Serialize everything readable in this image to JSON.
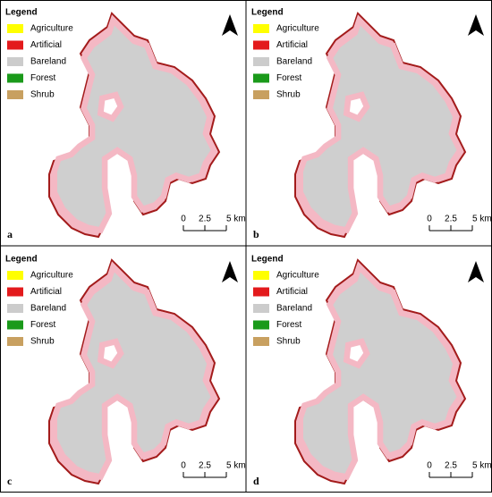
{
  "panels": [
    {
      "label": "a",
      "legend": {
        "title": "Legend",
        "items": [
          {
            "name": "Agriculture",
            "color": "#ffff00"
          },
          {
            "name": "Artificial",
            "color": "#e31a1c"
          },
          {
            "name": "Bareland",
            "color": "#cccccc"
          },
          {
            "name": "Forest",
            "color": "#1a9a1a"
          },
          {
            "name": "Shrub",
            "color": "#c8a060"
          }
        ]
      },
      "scale": [
        "0",
        "2.5",
        "5 km"
      ]
    },
    {
      "label": "b",
      "legend": {
        "title": "Legend",
        "items": [
          {
            "name": "Agriculture",
            "color": "#ffff00"
          },
          {
            "name": "Artificial",
            "color": "#e31a1c"
          },
          {
            "name": "Bareland",
            "color": "#cccccc"
          },
          {
            "name": "Forest",
            "color": "#1a9a1a"
          },
          {
            "name": "Shrub",
            "color": "#c8a060"
          }
        ]
      },
      "scale": [
        "0",
        "2.5",
        "5 km"
      ]
    },
    {
      "label": "c",
      "legend": {
        "title": "Legend",
        "items": [
          {
            "name": "Agriculture",
            "color": "#ffff00"
          },
          {
            "name": "Artificial",
            "color": "#e31a1c"
          },
          {
            "name": "Bareland",
            "color": "#cccccc"
          },
          {
            "name": "Forest",
            "color": "#1a9a1a"
          },
          {
            "name": "Shrub",
            "color": "#c8a060"
          }
        ]
      },
      "scale": [
        "0",
        "2.5",
        "5 km"
      ]
    },
    {
      "label": "d",
      "legend": {
        "title": "Legend",
        "items": [
          {
            "name": "Agriculture",
            "color": "#ffff00"
          },
          {
            "name": "Artificial",
            "color": "#e31a1c"
          },
          {
            "name": "Bareland",
            "color": "#cccccc"
          },
          {
            "name": "Forest",
            "color": "#1a9a1a"
          },
          {
            "name": "Shrub",
            "color": "#c8a060"
          }
        ]
      },
      "scale": [
        "0",
        "2.5",
        "5 km"
      ]
    }
  ]
}
